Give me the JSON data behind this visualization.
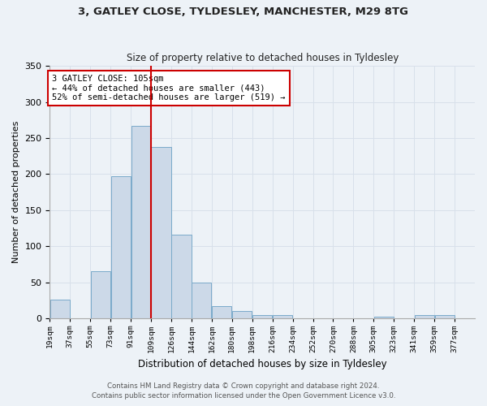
{
  "title_line1": "3, GATLEY CLOSE, TYLDESLEY, MANCHESTER, M29 8TG",
  "title_line2": "Size of property relative to detached houses in Tyldesley",
  "xlabel": "Distribution of detached houses by size in Tyldesley",
  "ylabel": "Number of detached properties",
  "bar_color": "#ccd9e8",
  "bar_edge_color": "#7aaaca",
  "grid_color": "#d8e0ea",
  "bin_labels": [
    "19sqm",
    "37sqm",
    "55sqm",
    "73sqm",
    "91sqm",
    "109sqm",
    "126sqm",
    "144sqm",
    "162sqm",
    "180sqm",
    "198sqm",
    "216sqm",
    "234sqm",
    "252sqm",
    "270sqm",
    "288sqm",
    "305sqm",
    "323sqm",
    "341sqm",
    "359sqm",
    "377sqm"
  ],
  "bar_heights": [
    26,
    0,
    65,
    197,
    267,
    238,
    116,
    50,
    17,
    10,
    5,
    5,
    0,
    0,
    0,
    0,
    2,
    0,
    5,
    5,
    0
  ],
  "ylim": [
    0,
    350
  ],
  "yticks": [
    0,
    50,
    100,
    150,
    200,
    250,
    300,
    350
  ],
  "annotation_text": "3 GATLEY CLOSE: 105sqm\n← 44% of detached houses are smaller (443)\n52% of semi-detached houses are larger (519) →",
  "annotation_box_color": "#ffffff",
  "annotation_box_edge": "#cc0000",
  "annotation_line_color": "#cc0000",
  "footer_line1": "Contains HM Land Registry data © Crown copyright and database right 2024.",
  "footer_line2": "Contains public sector information licensed under the Open Government Licence v3.0.",
  "background_color": "#edf2f7",
  "plot_background": "#edf2f7",
  "num_bins": 21,
  "bin_width": 18
}
